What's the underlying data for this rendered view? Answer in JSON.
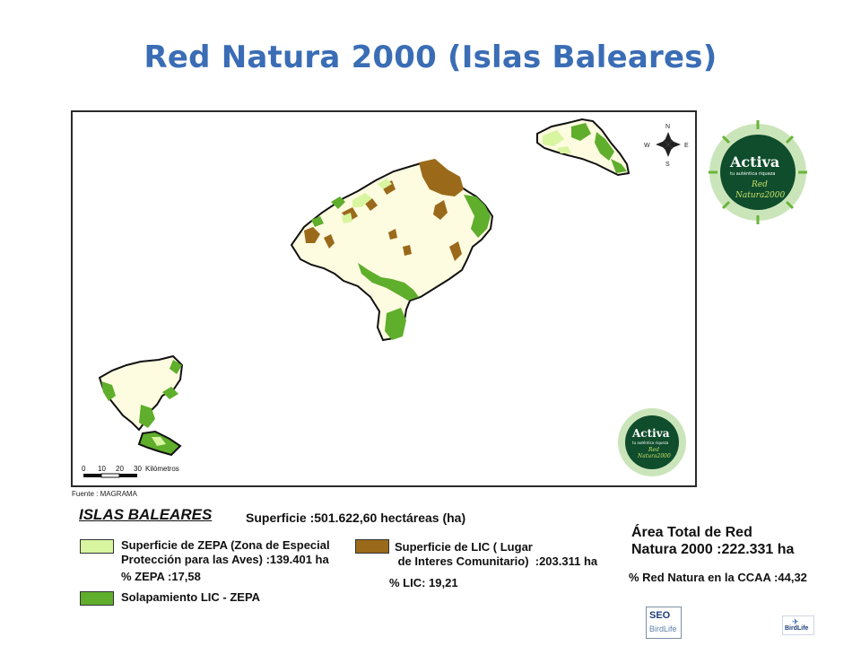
{
  "title": "Red Natura 2000 (Islas Baleares)",
  "map": {
    "scale_ticks": [
      "0",
      "10",
      "20",
      "30"
    ],
    "scale_unit": "Kilómetros",
    "compass": {
      "n": "N",
      "s": "S",
      "e": "E",
      "w": "W"
    },
    "source": "Fuente : MAGRAMA"
  },
  "badge": {
    "name": "Activa",
    "tagline": "tu auténtica riqueza",
    "line1": "Red",
    "line2": "Natura2000"
  },
  "legend": {
    "heading": "ISLAS BALEARES",
    "superficie": "Superficie :501.622,60  hectáreas (ha)",
    "zepa": {
      "label": "Superficie de ZEPA (Zona de Especial\nProtección para las Aves) :139.401 ha",
      "pct": "% ZEPA :17,58",
      "color": "#d8f5a0"
    },
    "lic": {
      "label": "Superficie de LIC ( Lugar\n de Interes Comunitario)  :203.311 ha",
      "pct": "% LIC: 19,21",
      "color": "#9a6a1a"
    },
    "solapamiento": {
      "label": "Solapamiento LIC - ZEPA",
      "color": "#5fae2c"
    }
  },
  "totals": {
    "area_total": "Área Total de Red\nNatura 2000 :222.331 ha",
    "red_pct": "% Red Natura en la CCAA :44,32"
  },
  "logos": {
    "seo_top": "SEO",
    "seo_bottom": "BirdLife",
    "birdlife": "BirdLife"
  },
  "colors": {
    "title": "#3a6db5",
    "island_fill": "#fdfbe0",
    "zepa": "#d8f5a0",
    "lic": "#9a6a1a",
    "solapamiento": "#5fae2c",
    "badge_dark": "#0f4d2c",
    "badge_green": "#6ab43a"
  }
}
